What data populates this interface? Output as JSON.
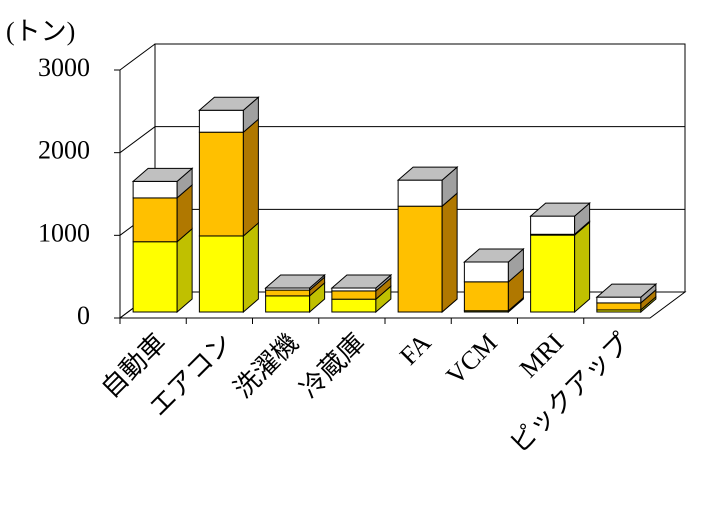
{
  "chart_data": {
    "type": "bar3d_stacked",
    "title": "(トン)",
    "categories": [
      "自動車",
      "エアコン",
      "洗濯機",
      "冷蔵庫",
      "FA",
      "VCM",
      "MRI",
      "ピックアップ"
    ],
    "series": [
      {
        "color": "#ffff00",
        "side_color": "#c0c000",
        "values": [
          850,
          920,
          195,
          155,
          0,
          15,
          930,
          25
        ]
      },
      {
        "color": "#ffc000",
        "side_color": "#b07800",
        "values": [
          530,
          1255,
          70,
          100,
          1280,
          350,
          10,
          85
        ]
      },
      {
        "color": "#ffffff",
        "side_color": "#a0a0a0",
        "values": [
          200,
          265,
          25,
          35,
          315,
          240,
          220,
          70
        ]
      }
    ],
    "ylim": [
      0,
      3000
    ],
    "yticks": [
      0,
      1000,
      2000,
      3000
    ],
    "grid": true
  }
}
